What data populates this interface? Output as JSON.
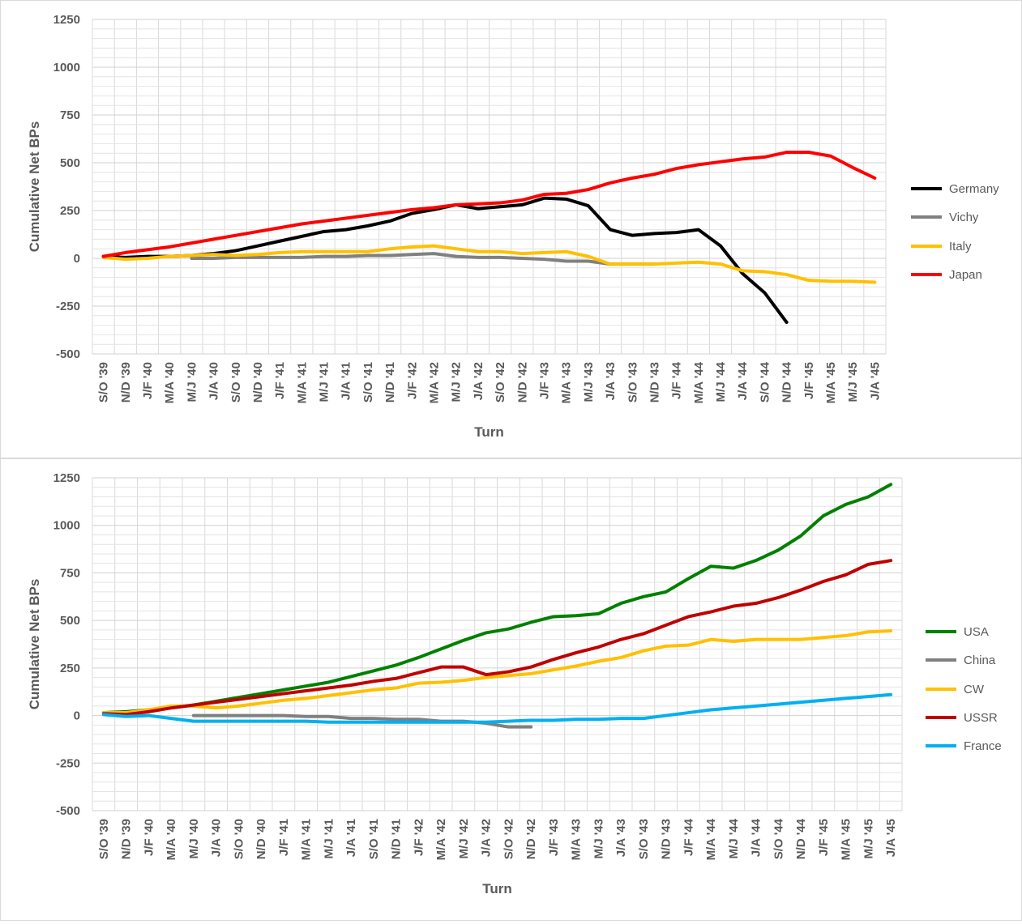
{
  "colors": {
    "Germany": "#000000",
    "Vichy": "#808080",
    "Italy": "#ffc000",
    "Japan": "#ff0000",
    "USA": "#008000",
    "China": "#808080",
    "CW": "#ffc000",
    "USSR": "#c00000",
    "France": "#00b0f0",
    "grid": "#d9d9d9",
    "text": "#595959"
  },
  "chart_data": [
    {
      "type": "line",
      "title": "",
      "xlabel": "Turn",
      "ylabel": "Cumulative Net BPs",
      "ylim": [
        -500,
        1250
      ],
      "yticks": [
        -500,
        -250,
        0,
        250,
        500,
        750,
        1000,
        1250
      ],
      "grid": true,
      "legend_position": "right",
      "categories": [
        "S/O '39",
        "N/D '39",
        "J/F '40",
        "M/A '40",
        "M/J '40",
        "J/A '40",
        "S/O '40",
        "N/D '40",
        "J/F '41",
        "M/A '41",
        "M/J '41",
        "J/A '41",
        "S/O '41",
        "N/D '41",
        "J/F '42",
        "M/A '42",
        "M/J '42",
        "J/A '42",
        "S/O '42",
        "N/D '42",
        "J/F '43",
        "M/A '43",
        "M/J '43",
        "J/A '43",
        "S/O '43",
        "N/D '43",
        "J/F '44",
        "M/A '44",
        "M/J '44",
        "J/A '44",
        "S/O '44",
        "N/D '44",
        "J/F '45",
        "M/A '45",
        "M/J '45",
        "J/A '45"
      ],
      "series": [
        {
          "name": "Germany",
          "values": [
            10,
            5,
            10,
            10,
            15,
            25,
            40,
            65,
            90,
            115,
            140,
            150,
            170,
            195,
            235,
            255,
            280,
            260,
            270,
            280,
            315,
            310,
            275,
            150,
            120,
            130,
            135,
            150,
            65,
            -80,
            -180,
            -335,
            null,
            null,
            null,
            null
          ]
        },
        {
          "name": "Vichy",
          "values": [
            null,
            null,
            null,
            null,
            0,
            0,
            5,
            5,
            5,
            5,
            10,
            10,
            15,
            15,
            20,
            25,
            10,
            5,
            5,
            0,
            -5,
            -15,
            -15,
            -30,
            -30,
            -30,
            null,
            null,
            null,
            null,
            null,
            null,
            null,
            null,
            null,
            null
          ]
        },
        {
          "name": "Italy",
          "values": [
            5,
            -5,
            0,
            10,
            15,
            20,
            15,
            20,
            30,
            35,
            35,
            35,
            35,
            50,
            60,
            65,
            50,
            35,
            35,
            25,
            30,
            35,
            10,
            -30,
            -30,
            -30,
            -25,
            -20,
            -30,
            -65,
            -70,
            -85,
            -115,
            -120,
            -120,
            -125
          ]
        },
        {
          "name": "Japan",
          "values": [
            10,
            30,
            45,
            60,
            80,
            100,
            120,
            140,
            160,
            180,
            195,
            210,
            225,
            240,
            255,
            265,
            280,
            285,
            290,
            305,
            335,
            340,
            360,
            395,
            420,
            440,
            470,
            490,
            505,
            520,
            530,
            555,
            555,
            535,
            475,
            420
          ]
        }
      ]
    },
    {
      "type": "line",
      "title": "",
      "xlabel": "Turn",
      "ylabel": "Cumulative Net BPs",
      "ylim": [
        -500,
        1250
      ],
      "yticks": [
        -500,
        -250,
        0,
        250,
        500,
        750,
        1000,
        1250
      ],
      "grid": true,
      "legend_position": "right",
      "categories": [
        "S/O '39",
        "N/D '39",
        "J/F '40",
        "M/A '40",
        "M/J '40",
        "J/A '40",
        "S/O '40",
        "N/D '40",
        "J/F '41",
        "M/A '41",
        "M/J '41",
        "J/A '41",
        "S/O '41",
        "N/D '41",
        "J/F '42",
        "M/A '42",
        "M/J '42",
        "J/A '42",
        "S/O '42",
        "N/D '42",
        "J/F '43",
        "M/A '43",
        "M/J '43",
        "J/A '43",
        "S/O '43",
        "N/D '43",
        "J/F '44",
        "M/A '44",
        "M/J '44",
        "J/A '44",
        "S/O '44",
        "N/D '44",
        "J/F '45",
        "M/A '45",
        "M/J '45",
        "J/A '45"
      ],
      "series": [
        {
          "name": "USA",
          "values": [
            15,
            20,
            30,
            40,
            55,
            75,
            95,
            115,
            135,
            155,
            175,
            205,
            235,
            265,
            305,
            350,
            395,
            435,
            455,
            490,
            520,
            525,
            535,
            590,
            625,
            650,
            720,
            785,
            775,
            815,
            870,
            945,
            1050,
            1110,
            1150,
            1215
          ]
        },
        {
          "name": "China",
          "values": [
            null,
            null,
            null,
            null,
            0,
            0,
            0,
            0,
            0,
            -5,
            -5,
            -15,
            -15,
            -20,
            -20,
            -30,
            -30,
            -40,
            -60,
            -60,
            null,
            null,
            null,
            null,
            null,
            null,
            null,
            null,
            null,
            null,
            null,
            null,
            null,
            null,
            null,
            null
          ]
        },
        {
          "name": "CW",
          "values": [
            15,
            15,
            30,
            50,
            50,
            40,
            50,
            65,
            80,
            90,
            105,
            120,
            135,
            145,
            170,
            175,
            185,
            200,
            210,
            220,
            240,
            260,
            285,
            305,
            340,
            365,
            370,
            400,
            390,
            400,
            400,
            400,
            410,
            420,
            440,
            445
          ]
        },
        {
          "name": "USSR",
          "values": [
            10,
            5,
            20,
            40,
            55,
            70,
            85,
            100,
            115,
            130,
            145,
            160,
            180,
            195,
            225,
            255,
            255,
            215,
            230,
            255,
            295,
            330,
            360,
            400,
            430,
            475,
            520,
            545,
            575,
            590,
            620,
            660,
            705,
            740,
            795,
            815
          ]
        },
        {
          "name": "France",
          "values": [
            5,
            -5,
            0,
            -15,
            -30,
            -30,
            -30,
            -30,
            -30,
            -30,
            -35,
            -35,
            -35,
            -35,
            -35,
            -35,
            -35,
            -35,
            -30,
            -25,
            -25,
            -20,
            -20,
            -15,
            -15,
            0,
            15,
            30,
            40,
            50,
            60,
            70,
            80,
            90,
            100,
            110
          ]
        }
      ]
    }
  ]
}
